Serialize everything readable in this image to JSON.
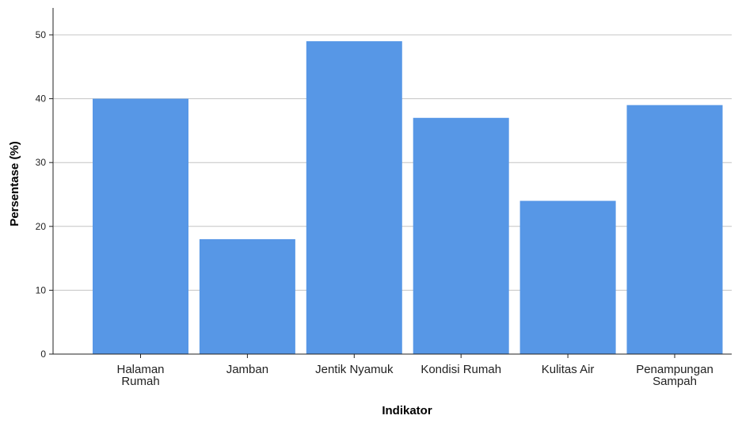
{
  "chart_data": {
    "type": "bar",
    "title": "",
    "xlabel": "Indikator",
    "ylabel": "Persentase (%)",
    "ylim": [
      0,
      52
    ],
    "yticks": [
      0,
      10,
      20,
      30,
      40,
      50
    ],
    "grid": "horizontal",
    "categories": [
      [
        "Halaman",
        "Rumah"
      ],
      [
        "Jamban"
      ],
      [
        "Jentik Nyamuk"
      ],
      [
        "Kondisi Rumah"
      ],
      [
        "Kulitas Air"
      ],
      [
        "Penampungan",
        "Sampah"
      ]
    ],
    "values": [
      40,
      18,
      49,
      37,
      24,
      39
    ],
    "colors": {
      "bar": "#5797e6",
      "grid": "#c4c4c4",
      "axis": "#222222"
    }
  }
}
